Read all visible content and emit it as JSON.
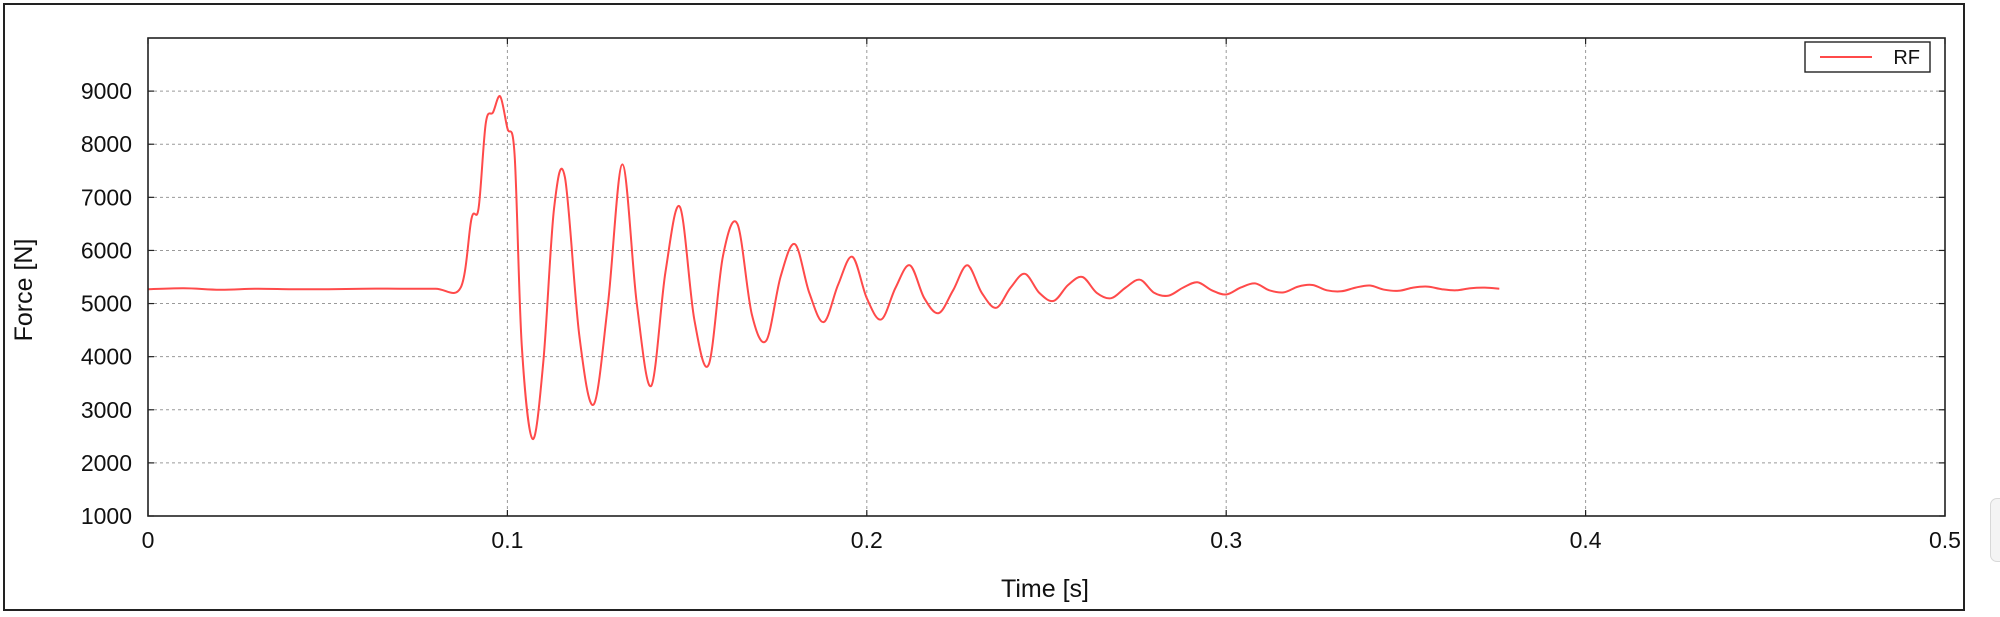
{
  "chart_data": {
    "type": "line",
    "title": "",
    "xlabel": "Time [s]",
    "ylabel": "Force [N]",
    "xlim": [
      0,
      0.5
    ],
    "ylim": [
      1000,
      10000
    ],
    "xticks": [
      0,
      0.1,
      0.2,
      0.3,
      0.4,
      0.5
    ],
    "xtick_labels": [
      "0",
      "0.1",
      "0.2",
      "0.3",
      "0.4",
      "0.5"
    ],
    "yticks": [
      1000,
      2000,
      3000,
      4000,
      5000,
      6000,
      7000,
      8000,
      9000
    ],
    "ytick_labels": [
      "1000",
      "2000",
      "3000",
      "4000",
      "5000",
      "6000",
      "7000",
      "8000",
      "9000"
    ],
    "grid": true,
    "legend_position": "top-right",
    "series": [
      {
        "name": "RF",
        "color": "#ff4a4a",
        "x": [
          0,
          0.01,
          0.02,
          0.03,
          0.04,
          0.05,
          0.06,
          0.07,
          0.08,
          0.087,
          0.09,
          0.092,
          0.094,
          0.096,
          0.098,
          0.1,
          0.102,
          0.104,
          0.107,
          0.11,
          0.113,
          0.116,
          0.12,
          0.124,
          0.128,
          0.132,
          0.136,
          0.14,
          0.144,
          0.148,
          0.152,
          0.156,
          0.16,
          0.164,
          0.168,
          0.172,
          0.176,
          0.18,
          0.184,
          0.188,
          0.192,
          0.196,
          0.2,
          0.204,
          0.208,
          0.212,
          0.216,
          0.22,
          0.224,
          0.228,
          0.232,
          0.236,
          0.24,
          0.244,
          0.248,
          0.252,
          0.256,
          0.26,
          0.264,
          0.268,
          0.272,
          0.276,
          0.28,
          0.284,
          0.288,
          0.292,
          0.296,
          0.3,
          0.304,
          0.308,
          0.312,
          0.316,
          0.32,
          0.324,
          0.328,
          0.332,
          0.336,
          0.34,
          0.344,
          0.348,
          0.352,
          0.356,
          0.36,
          0.364,
          0.368,
          0.372,
          0.376
        ],
        "y": [
          5270,
          5290,
          5260,
          5280,
          5270,
          5270,
          5280,
          5280,
          5280,
          5300,
          6600,
          6800,
          8400,
          8600,
          8900,
          8300,
          7800,
          4200,
          2450,
          3900,
          6800,
          7380,
          4400,
          3100,
          5000,
          7620,
          5000,
          3450,
          5600,
          6820,
          4700,
          3850,
          5900,
          6500,
          4800,
          4300,
          5500,
          6120,
          5200,
          4650,
          5350,
          5880,
          5100,
          4700,
          5300,
          5720,
          5100,
          4820,
          5250,
          5720,
          5200,
          4920,
          5300,
          5560,
          5200,
          5050,
          5350,
          5500,
          5200,
          5100,
          5300,
          5450,
          5200,
          5150,
          5300,
          5400,
          5250,
          5170,
          5300,
          5380,
          5250,
          5210,
          5320,
          5350,
          5250,
          5230,
          5300,
          5340,
          5260,
          5240,
          5300,
          5320,
          5270,
          5250,
          5290,
          5300,
          5280
        ]
      }
    ]
  }
}
